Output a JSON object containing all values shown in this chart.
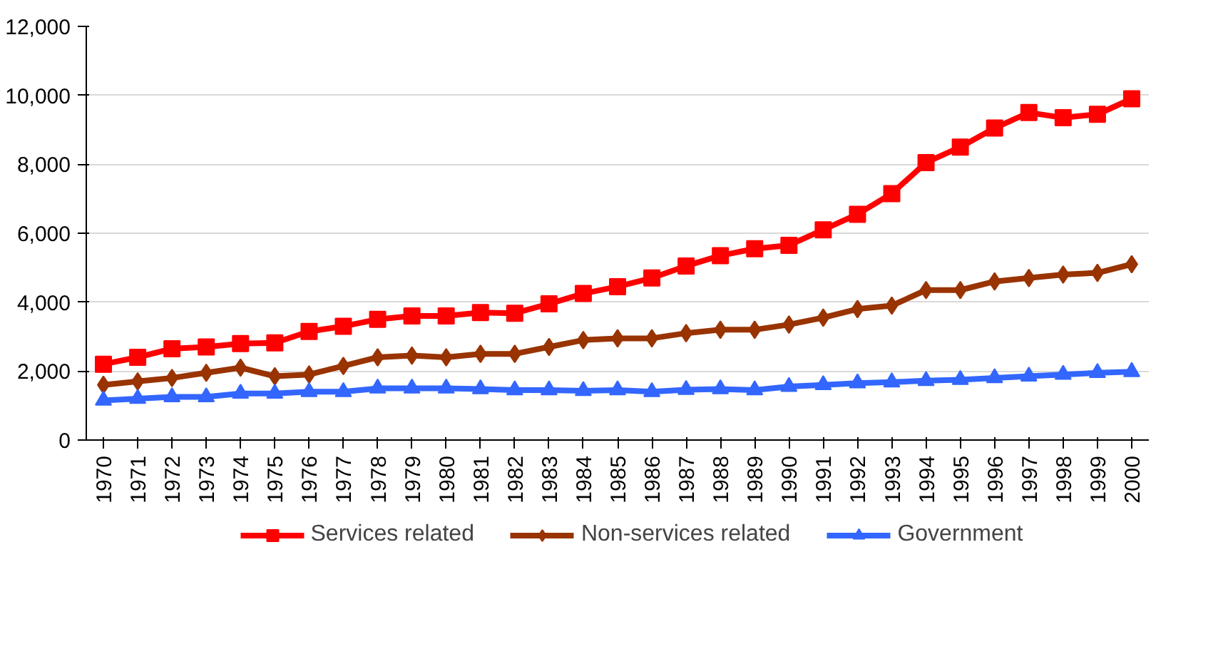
{
  "chart_data": {
    "type": "line",
    "categories": [
      "1970",
      "1971",
      "1972",
      "1973",
      "1974",
      "1975",
      "1976",
      "1977",
      "1978",
      "1979",
      "1980",
      "1981",
      "1982",
      "1983",
      "1984",
      "1985",
      "1986",
      "1987",
      "1988",
      "1989",
      "1990",
      "1991",
      "1992",
      "1993",
      "1994",
      "1995",
      "1996",
      "1997",
      "1998",
      "1999",
      "2000"
    ],
    "series": [
      {
        "name": "Services related",
        "color": "#ff0000",
        "marker": "square",
        "values": [
          2200,
          2400,
          2650,
          2700,
          2800,
          2820,
          3150,
          3300,
          3500,
          3600,
          3600,
          3700,
          3680,
          3950,
          4250,
          4450,
          4700,
          5050,
          5350,
          5550,
          5650,
          6100,
          6550,
          7150,
          8050,
          8500,
          9050,
          9500,
          9350,
          9450,
          9900
        ]
      },
      {
        "name": "Non-services related",
        "color": "#993300",
        "marker": "diamond",
        "values": [
          1600,
          1700,
          1800,
          1950,
          2100,
          1850,
          1900,
          2150,
          2400,
          2450,
          2400,
          2500,
          2500,
          2700,
          2900,
          2950,
          2950,
          3100,
          3200,
          3200,
          3350,
          3550,
          3800,
          3900,
          4350,
          4350,
          4600,
          4700,
          4800,
          4850,
          5100
        ]
      },
      {
        "name": "Government",
        "color": "#3366ff",
        "marker": "triangle",
        "values": [
          1150,
          1200,
          1250,
          1250,
          1350,
          1350,
          1400,
          1400,
          1500,
          1500,
          1500,
          1480,
          1450,
          1450,
          1430,
          1450,
          1400,
          1460,
          1480,
          1450,
          1550,
          1600,
          1650,
          1680,
          1720,
          1750,
          1800,
          1850,
          1900,
          1950,
          1980
        ]
      }
    ],
    "ylim": [
      0,
      12000
    ],
    "yticks": [
      {
        "value": 0,
        "label": "0"
      },
      {
        "value": 2000,
        "label": "2,000"
      },
      {
        "value": 4000,
        "label": "4,000"
      },
      {
        "value": 6000,
        "label": "6,000"
      },
      {
        "value": 8000,
        "label": "8,000"
      },
      {
        "value": 10000,
        "label": "10,000"
      },
      {
        "value": 12000,
        "label": "12,000"
      }
    ],
    "grid": "y",
    "legend": "bottom",
    "line_style": "solid"
  }
}
